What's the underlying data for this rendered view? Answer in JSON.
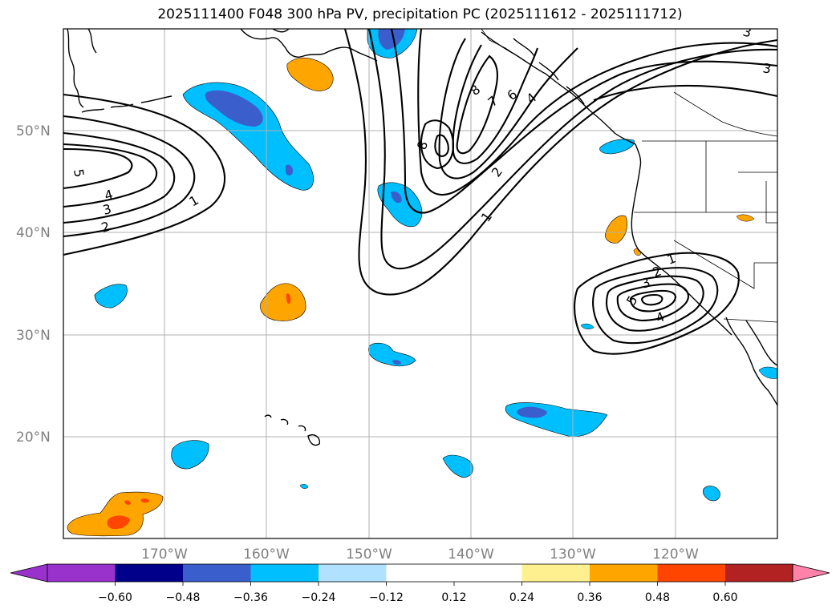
{
  "title": "2025111400 F048 300 hPa PV, precipitation PC (2025111612 - 2025111712)",
  "latitude_labels": [
    "50°N",
    "40°N",
    "30°N",
    "20°N"
  ],
  "longitude_labels": [
    "170°W",
    "160°W",
    "150°W",
    "140°W",
    "130°W",
    "120°W"
  ],
  "colorbar": {
    "colors": [
      "#9932cc",
      "#00008b",
      "#3a5fcd",
      "#00bfff",
      "#b0e2ff",
      "#ffffff",
      "#fff08f",
      "#ffa500",
      "#ff4500",
      "#b22222",
      "#ff82ab"
    ],
    "tick_labels": [
      "−0.60",
      "−0.48",
      "−0.36",
      "−0.24",
      "−0.12",
      "0.12",
      "0.24",
      "0.36",
      "0.48",
      "0.60"
    ]
  },
  "pv_contour_labels": [
    "5",
    "4",
    "3",
    "2",
    "1",
    "8",
    "7",
    "6",
    "4",
    "3",
    "2",
    "1",
    "3",
    "1",
    "2",
    "3",
    "5",
    "4",
    "8"
  ],
  "colors": {
    "coast": "#000000",
    "grid": "#b0b0b0",
    "contour": "#000000"
  }
}
